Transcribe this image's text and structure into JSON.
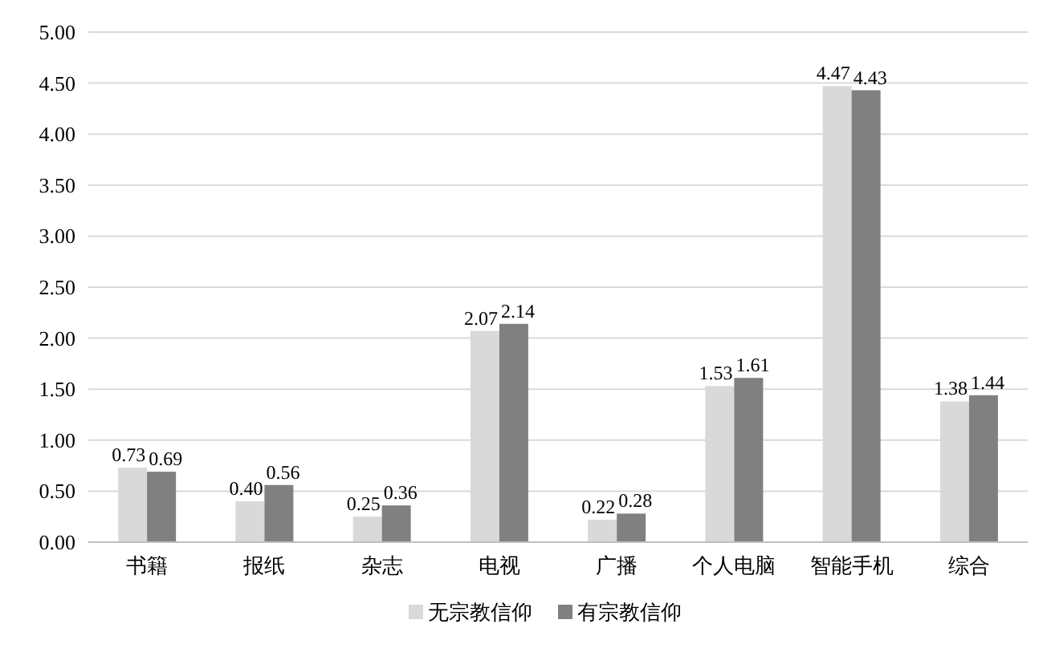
{
  "chart_data": {
    "type": "bar",
    "categories": [
      "书籍",
      "报纸",
      "杂志",
      "电视",
      "广播",
      "个人电脑",
      "智能手机",
      "综合"
    ],
    "series": [
      {
        "name": "无宗教信仰",
        "color": "#d9d9d9",
        "values": [
          0.73,
          0.4,
          0.25,
          2.07,
          0.22,
          1.53,
          4.47,
          1.38
        ],
        "value_labels": [
          "0.73",
          "0.40",
          "0.25",
          "2.07",
          "0.22",
          "1.53",
          "4.47",
          "1.38"
        ]
      },
      {
        "name": "有宗教信仰",
        "color": "#808080",
        "values": [
          0.69,
          0.56,
          0.36,
          2.14,
          0.28,
          1.61,
          4.43,
          1.44
        ],
        "value_labels": [
          "0.69",
          "0.56",
          "0.36",
          "2.14",
          "0.28",
          "1.61",
          "4.43",
          "1.44"
        ]
      }
    ],
    "ylim": [
      0,
      5
    ],
    "yticks": [
      {
        "value": 0,
        "label": "0.00"
      },
      {
        "value": 0.5,
        "label": "0.50"
      },
      {
        "value": 1,
        "label": "1.00"
      },
      {
        "value": 1.5,
        "label": "1.50"
      },
      {
        "value": 2,
        "label": "2.00"
      },
      {
        "value": 2.5,
        "label": "2.50"
      },
      {
        "value": 3,
        "label": "3.00"
      },
      {
        "value": 3.5,
        "label": "3.50"
      },
      {
        "value": 4,
        "label": "4.00"
      },
      {
        "value": 4.5,
        "label": "4.50"
      },
      {
        "value": 5,
        "label": "5.00"
      }
    ],
    "grid": "y",
    "legend": "bottom"
  }
}
